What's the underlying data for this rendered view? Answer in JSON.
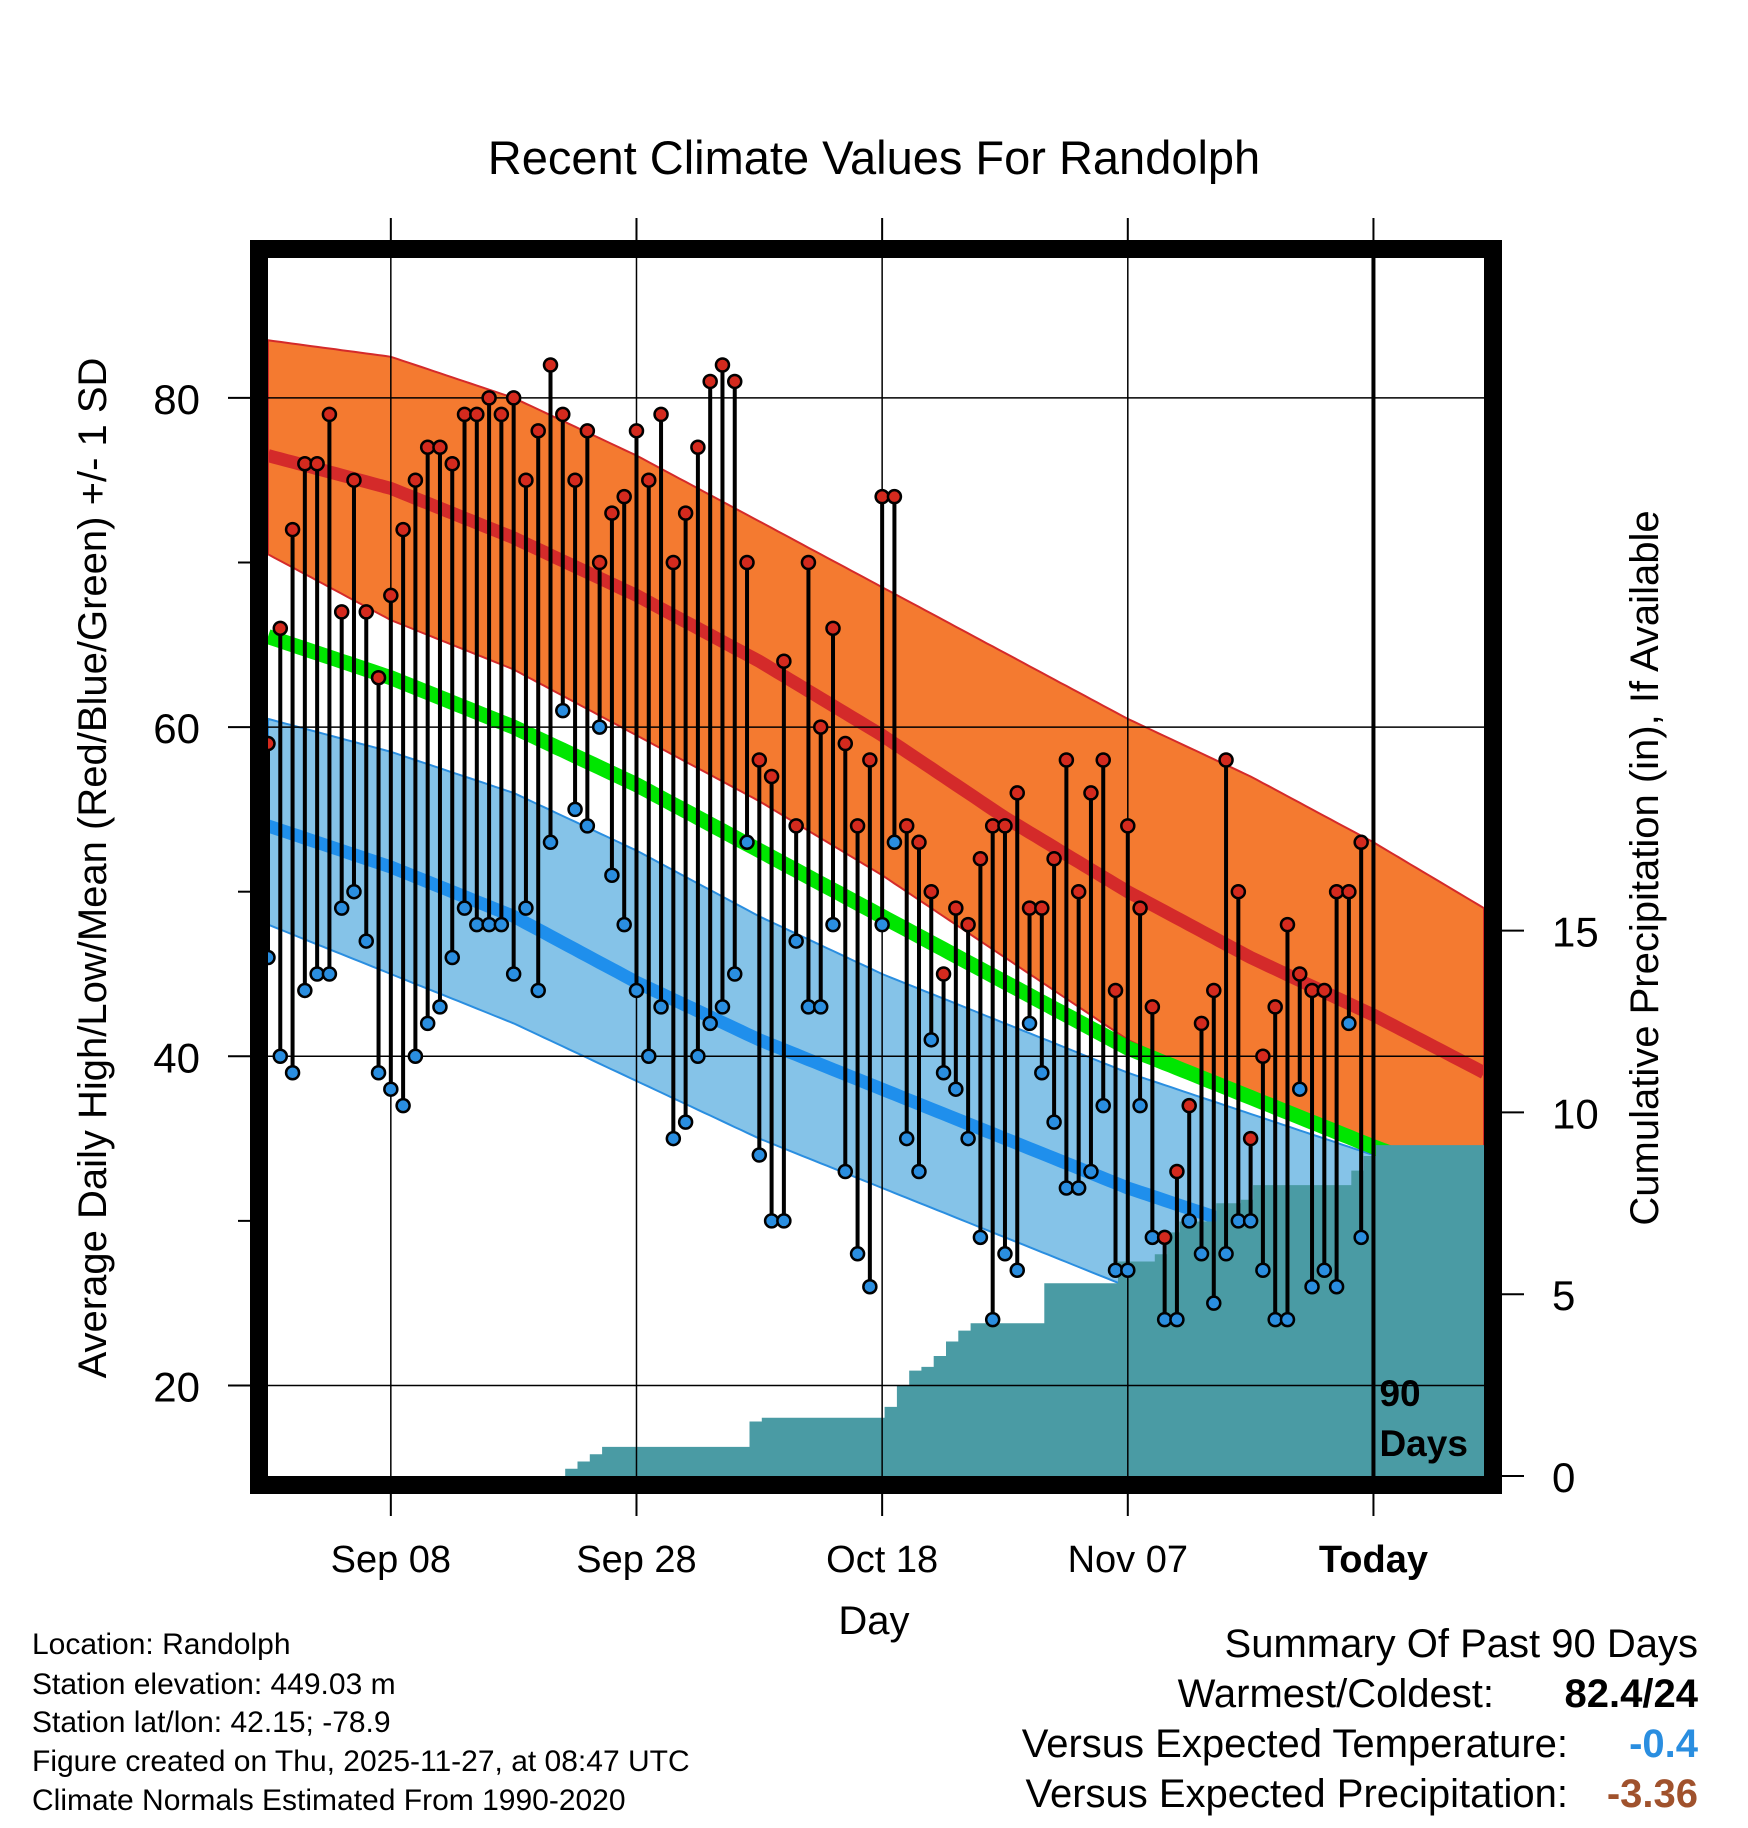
{
  "chart_data": {
    "type": "line",
    "title": "Recent Climate Values For Randolph",
    "xlabel": "Day",
    "ylabel": "Average Daily High/Low/Mean (Red/Blue/Green) +/- 1 SD",
    "y2label": "Cumulative Precipitation (in), If Available",
    "x_ticks": [
      {
        "day": 10,
        "label": "Sep 08"
      },
      {
        "day": 30,
        "label": "Sep 28"
      },
      {
        "day": 50,
        "label": "Oct 18"
      },
      {
        "day": 70,
        "label": "Nov 07"
      },
      {
        "day": 90,
        "label": "Today"
      }
    ],
    "y_ticks": [
      20,
      40,
      60,
      80
    ],
    "y_minor_ticks": [
      30,
      50,
      70
    ],
    "y2_ticks": [
      0,
      5,
      10,
      15
    ],
    "y_range": [
      14.5,
      88.5
    ],
    "y2_range": [
      0,
      33.5
    ],
    "x_range": [
      0,
      99
    ],
    "today_day": 90,
    "today_label": [
      "90",
      "Days"
    ],
    "normals": {
      "day": [
        0,
        10,
        20,
        30,
        40,
        50,
        60,
        70,
        80,
        90,
        99
      ],
      "high_mean": [
        76.5,
        74.5,
        71.5,
        68,
        64,
        59.5,
        54.5,
        50,
        46,
        42.5,
        39
      ],
      "high_upper": [
        83.5,
        82.5,
        80,
        76.5,
        72.5,
        68.5,
        64.5,
        60.5,
        57,
        53,
        49
      ],
      "high_lower": [
        70.5,
        66.5,
        63.5,
        59.5,
        55.5,
        51,
        46,
        41,
        37.5,
        34,
        30
      ],
      "low_mean": [
        54,
        51.5,
        48.5,
        44.5,
        41,
        38,
        35,
        32,
        29.5,
        27,
        25
      ],
      "low_upper": [
        60.5,
        58.5,
        56,
        52.5,
        48.5,
        45,
        42,
        39,
        36.5,
        34,
        32
      ],
      "low_lower": [
        48,
        45,
        42,
        38.5,
        35,
        32,
        29,
        26,
        23,
        20,
        17
      ],
      "avg_mean": [
        65.5,
        63,
        60,
        56.5,
        52.5,
        48.5,
        44.5,
        40.5,
        37.5,
        34.5,
        32
      ]
    },
    "series": [
      {
        "name": "Daily High",
        "color": "#d42a1e",
        "values": [
          59,
          66,
          72,
          76,
          76,
          79,
          67,
          75,
          67,
          63,
          68,
          72,
          75,
          77,
          77,
          76,
          79,
          79,
          80,
          79,
          80,
          75,
          78,
          82,
          79,
          75,
          78,
          70,
          73,
          74,
          78,
          75,
          79,
          70,
          73,
          77,
          81,
          82,
          81,
          70,
          58,
          57,
          64,
          54,
          70,
          60,
          66,
          59,
          54,
          58,
          74,
          74,
          54,
          53,
          50,
          45,
          49,
          48,
          52,
          54,
          54,
          56,
          49,
          49,
          52,
          58,
          50,
          56,
          58,
          44,
          54,
          49,
          43,
          29,
          33,
          37,
          42,
          44,
          58,
          50,
          35,
          40,
          43,
          48,
          45,
          44,
          44,
          50,
          50,
          53
        ]
      },
      {
        "name": "Daily Low",
        "color": "#2a8ee0",
        "values": [
          46,
          40,
          39,
          44,
          45,
          45,
          49,
          50,
          47,
          39,
          38,
          37,
          40,
          42,
          43,
          46,
          49,
          48,
          48,
          48,
          45,
          49,
          44,
          53,
          61,
          55,
          54,
          60,
          51,
          48,
          44,
          40,
          43,
          35,
          36,
          40,
          42,
          43,
          45,
          53,
          34,
          30,
          30,
          47,
          43,
          43,
          48,
          33,
          28,
          26,
          48,
          53,
          35,
          33,
          41,
          39,
          38,
          35,
          29,
          24,
          28,
          27,
          42,
          39,
          36,
          32,
          32,
          33,
          37,
          27,
          27,
          37,
          29,
          24,
          24,
          30,
          28,
          25,
          28,
          30,
          30,
          27,
          24,
          24,
          38,
          26,
          27,
          26,
          42,
          29
        ]
      },
      {
        "name": "Cumulative Precipitation",
        "color": "#4a9ba4",
        "values": [
          0,
          0,
          0,
          0,
          0,
          0,
          0,
          0,
          0,
          0,
          0,
          0,
          0,
          0,
          0,
          0,
          0,
          0,
          0,
          0,
          0,
          0,
          0,
          0,
          0.2,
          0.4,
          0.6,
          0.8,
          0.8,
          0.8,
          0.8,
          0.8,
          0.8,
          0.8,
          0.8,
          0.8,
          0.8,
          0.8,
          0.8,
          1.5,
          1.6,
          1.6,
          1.6,
          1.6,
          1.6,
          1.6,
          1.6,
          1.6,
          1.6,
          1.6,
          1.9,
          2.5,
          2.9,
          3.0,
          3.3,
          3.7,
          4.0,
          4.2,
          4.2,
          4.2,
          4.2,
          4.2,
          4.2,
          5.3,
          5.3,
          5.3,
          5.3,
          5.3,
          5.3,
          5.9,
          5.9,
          5.9,
          6.1,
          6.7,
          7.0,
          7.0,
          7.0,
          7.5,
          7.5,
          7.6,
          8.0,
          8.0,
          8.0,
          8.0,
          8.0,
          8.0,
          8.0,
          8.0,
          8.4,
          8.8,
          9.1
        ]
      }
    ],
    "colors": {
      "high_band": "#f47a30",
      "high_line": "#d42a2a",
      "low_band": "#85c3e8",
      "low_line": "#1f8fec",
      "mean_line": "#00e600",
      "below_band": "#9a1014",
      "precip": "#4a9ba4"
    }
  },
  "info": {
    "location": "Location: Randolph",
    "elevation": "Station elevation: 449.03 m",
    "latlon": "Station lat/lon: 42.15; -78.9",
    "created": "Figure created on Thu, 2025-11-27, at 08:47 UTC",
    "normals": "Climate Normals Estimated From 1990-2020"
  },
  "summary": {
    "title": "Summary Of Past 90 Days",
    "warmest_label": "Warmest/Coldest:",
    "warmest_value": "82.4/24",
    "temp_label": "Versus Expected Temperature:",
    "temp_value": "-0.4",
    "temp_color": "#2a8ee0",
    "precip_label": "Versus Expected Precipitation:",
    "precip_value": "-3.36",
    "precip_color": "#a0522d"
  }
}
